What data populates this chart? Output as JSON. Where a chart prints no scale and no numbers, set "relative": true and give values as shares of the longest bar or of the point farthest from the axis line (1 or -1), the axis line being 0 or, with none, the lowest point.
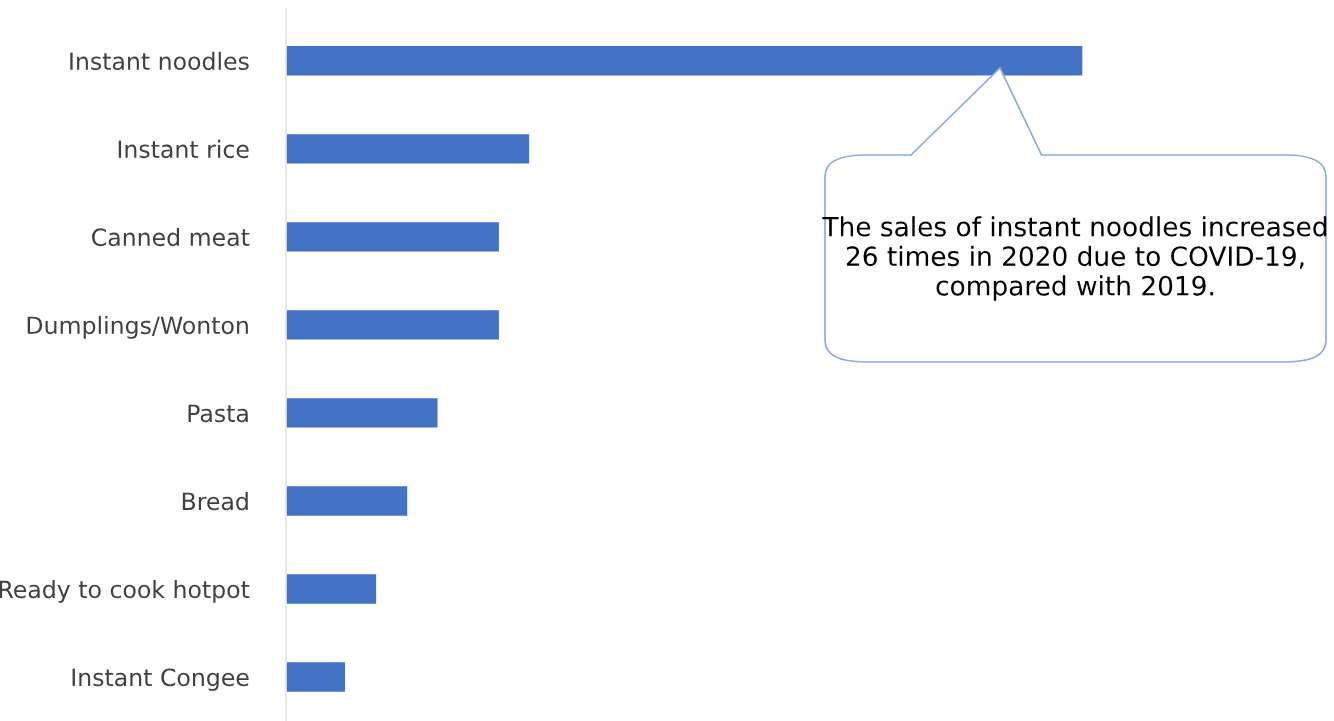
{
  "chart_data": {
    "type": "bar",
    "orientation": "horizontal",
    "relative": true,
    "categories": [
      "Instant noodles",
      "Instant rice",
      "Canned meat",
      "Dumplings/Wonton",
      "Pasta",
      "Bread",
      "Ready to cook hotpot",
      "Instant Congee"
    ],
    "values": [
      1,
      0.306,
      0.268,
      0.268,
      0.191,
      0.153,
      0.114,
      0.075
    ],
    "color": "#4472c4",
    "grid": false,
    "legend": false,
    "tick_labels": "y",
    "annotations": [
      "The sales of instant noodles increased 26 times in 2020 due to COVID-19, compared with 2019."
    ]
  }
}
